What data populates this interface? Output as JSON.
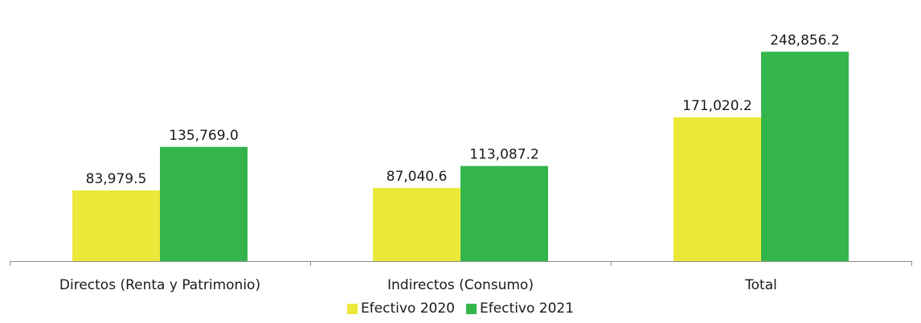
{
  "chart_data": {
    "type": "bar",
    "categories": [
      "Directos (Renta y Patrimonio)",
      "Indirectos (Consumo)",
      "Total"
    ],
    "series": [
      {
        "name": "Efectivo 2020",
        "values": [
          83979.5,
          87040.6,
          171020.2
        ],
        "labels": [
          "83,979.5",
          "87,040.6",
          "171,020.2"
        ],
        "color": "#ebe83a"
      },
      {
        "name": "Efectivo 2021",
        "values": [
          135769.0,
          113087.2,
          248856.2
        ],
        "labels": [
          "135,769.0",
          "113,087.2",
          "248,856.2"
        ],
        "color": "#33b54b"
      }
    ],
    "ylim": [
      0,
      270000
    ],
    "grid": false,
    "legend": "bottom"
  }
}
